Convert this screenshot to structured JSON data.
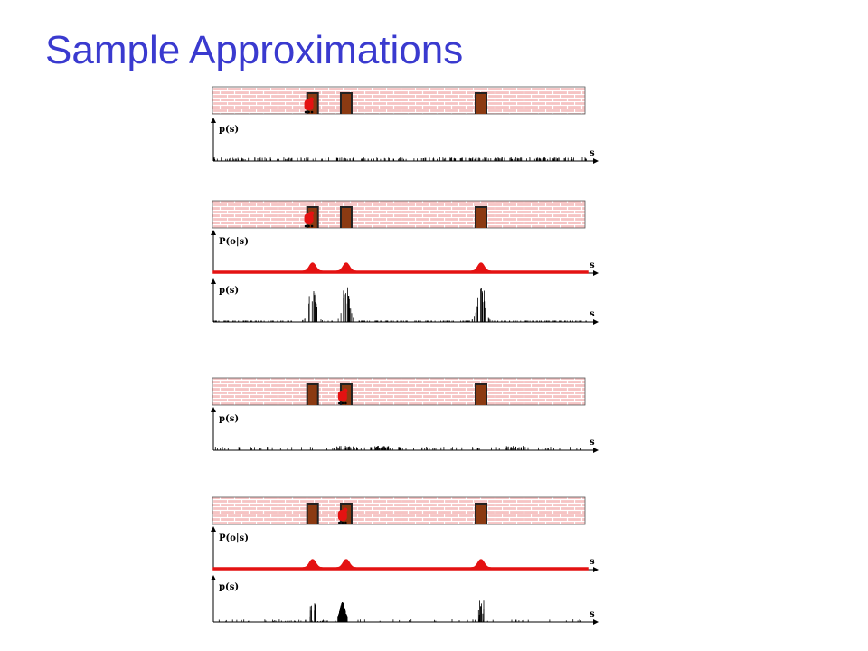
{
  "title": "Sample Approximations",
  "colors": {
    "title": "#3a3acf",
    "brick": "#f6c4c4",
    "mortar": "#ffffff",
    "door": "#8b3a12",
    "robot": "#e41212",
    "likelihood": "#e41212",
    "samples": "#000000"
  },
  "axis_labels": {
    "samples": "p(s)",
    "likelihood": "P(o|s)",
    "state": "s"
  },
  "doors": [
    0.265,
    0.355,
    0.715
  ],
  "steps": [
    {
      "robot_position": 0.255,
      "panels": [
        {
          "kind": "samples",
          "distribution": "uniform"
        }
      ]
    },
    {
      "robot_position": 0.255,
      "panels": [
        {
          "kind": "likelihood"
        },
        {
          "kind": "samples",
          "distribution": "weighted"
        }
      ]
    },
    {
      "robot_position": 0.345,
      "panels": [
        {
          "kind": "samples",
          "distribution": "resampled"
        }
      ]
    },
    {
      "robot_position": 0.345,
      "panels": [
        {
          "kind": "likelihood"
        },
        {
          "kind": "samples",
          "distribution": "posterior"
        }
      ]
    }
  ]
}
